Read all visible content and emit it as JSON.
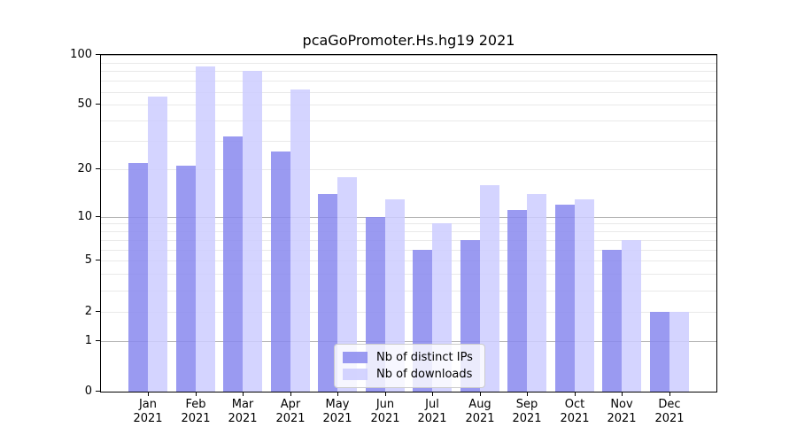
{
  "chart_data": {
    "type": "bar",
    "title": "pcaGoPromoter.Hs.hg19 2021",
    "year": "2021",
    "categories": [
      "Jan",
      "Feb",
      "Mar",
      "Apr",
      "May",
      "Jun",
      "Jul",
      "Aug",
      "Sep",
      "Oct",
      "Nov",
      "Dec"
    ],
    "series": [
      {
        "name": "Nb of distinct IPs",
        "color": "#8888ee",
        "values": [
          22,
          21,
          32,
          26,
          14,
          10,
          6,
          7,
          11,
          12,
          6,
          2
        ]
      },
      {
        "name": "Nb of downloads",
        "color": "#ccccff",
        "values": [
          56,
          85,
          80,
          62,
          18,
          13,
          9,
          16,
          14,
          13,
          7,
          2
        ]
      }
    ],
    "yscale": "log1p",
    "ylim": [
      0,
      100
    ],
    "yticks": [
      0,
      1,
      2,
      5,
      10,
      20,
      50,
      100
    ],
    "gridlines": {
      "major": [
        1,
        10,
        100
      ],
      "minor": [
        2,
        3,
        4,
        5,
        6,
        7,
        8,
        9,
        20,
        30,
        40,
        50,
        60,
        70,
        80,
        90
      ]
    },
    "legend_position": "lower center-right inside plot",
    "grid": true
  }
}
